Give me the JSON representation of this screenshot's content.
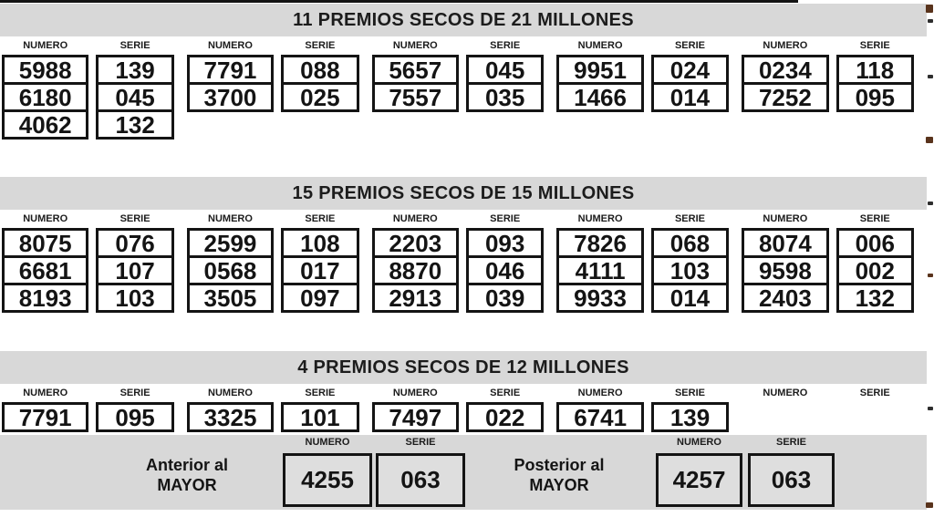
{
  "colors": {
    "band_gray": "#d8d8d8",
    "box_border": "#141414",
    "box_fill_white": "#ffffff",
    "footer_box_fill": "#dedede",
    "text": "#141414"
  },
  "column_headers": {
    "numero": "NUMERO",
    "serie": "SERIE"
  },
  "sections": [
    {
      "title": "11 PREMIOS SECOS DE 21 MILLONES",
      "rows": [
        [
          {
            "numero": "5988",
            "serie": "139"
          },
          {
            "numero": "7791",
            "serie": "088"
          },
          {
            "numero": "5657",
            "serie": "045"
          },
          {
            "numero": "9951",
            "serie": "024"
          },
          {
            "numero": "0234",
            "serie": "118"
          }
        ],
        [
          {
            "numero": "6180",
            "serie": "045"
          },
          {
            "numero": "3700",
            "serie": "025"
          },
          {
            "numero": "7557",
            "serie": "035"
          },
          {
            "numero": "1466",
            "serie": "014"
          },
          {
            "numero": "7252",
            "serie": "095"
          }
        ],
        [
          {
            "numero": "4062",
            "serie": "132"
          },
          null,
          null,
          null,
          null
        ]
      ]
    },
    {
      "title": "15 PREMIOS SECOS DE 15 MILLONES",
      "rows": [
        [
          {
            "numero": "8075",
            "serie": "076"
          },
          {
            "numero": "2599",
            "serie": "108"
          },
          {
            "numero": "2203",
            "serie": "093"
          },
          {
            "numero": "7826",
            "serie": "068"
          },
          {
            "numero": "8074",
            "serie": "006"
          }
        ],
        [
          {
            "numero": "6681",
            "serie": "107"
          },
          {
            "numero": "0568",
            "serie": "017"
          },
          {
            "numero": "8870",
            "serie": "046"
          },
          {
            "numero": "4111",
            "serie": "103"
          },
          {
            "numero": "9598",
            "serie": "002"
          }
        ],
        [
          {
            "numero": "8193",
            "serie": "103"
          },
          {
            "numero": "3505",
            "serie": "097"
          },
          {
            "numero": "2913",
            "serie": "039"
          },
          {
            "numero": "9933",
            "serie": "014"
          },
          {
            "numero": "2403",
            "serie": "132"
          }
        ]
      ]
    },
    {
      "title": "4 PREMIOS SECOS DE 12 MILLONES",
      "rows": [
        [
          {
            "numero": "7791",
            "serie": "095"
          },
          {
            "numero": "3325",
            "serie": "101"
          },
          {
            "numero": "7497",
            "serie": "022"
          },
          {
            "numero": "6741",
            "serie": "139"
          },
          null
        ]
      ]
    }
  ],
  "footer": {
    "anterior": {
      "label_line1": "Anterior al",
      "label_line2": "MAYOR",
      "numero": "4255",
      "serie": "063"
    },
    "posterior": {
      "label_line1": "Posterior al",
      "label_line2": "MAYOR",
      "numero": "4257",
      "serie": "063"
    }
  }
}
